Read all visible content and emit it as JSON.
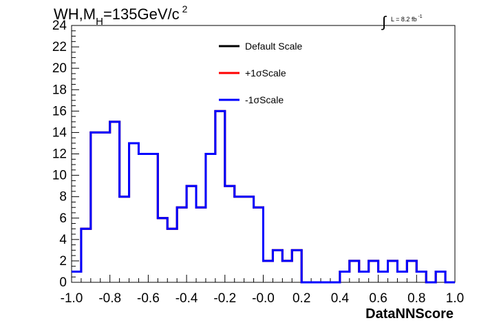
{
  "chart_data": {
    "type": "line",
    "title": "WH,M",
    "title_sub": "H",
    "title_rest": "=135GeV/c",
    "title_sup": "2",
    "lumi_text": "L = 8.2 fb",
    "lumi_sup": "-1",
    "xlabel": "DataNNScore",
    "ylabel": "",
    "xlim": [
      -1.0,
      1.0
    ],
    "ylim": [
      0,
      24
    ],
    "x_ticks": [
      "-1.0",
      "-0.8",
      "-0.6",
      "-0.4",
      "-0.2",
      "-0.0",
      "0.2",
      "0.4",
      "0.6",
      "0.8",
      "1.0"
    ],
    "y_ticks": [
      "0",
      "2",
      "4",
      "6",
      "8",
      "10",
      "12",
      "14",
      "16",
      "18",
      "20",
      "22",
      "24"
    ],
    "grid": false,
    "legend_position": "top-center",
    "bin_edges": [
      -1.0,
      -0.95,
      -0.9,
      -0.85,
      -0.8,
      -0.75,
      -0.7,
      -0.65,
      -0.6,
      -0.55,
      -0.5,
      -0.45,
      -0.4,
      -0.35,
      -0.3,
      -0.25,
      -0.2,
      -0.15,
      -0.1,
      -0.05,
      0.0,
      0.05,
      0.1,
      0.15,
      0.2,
      0.25,
      0.3,
      0.35,
      0.4,
      0.45,
      0.5,
      0.55,
      0.6,
      0.65,
      0.7,
      0.75,
      0.8,
      0.85,
      0.9,
      0.95,
      1.0
    ],
    "series": [
      {
        "name": "Default Scale",
        "color": "#000000",
        "values": [
          1,
          5,
          14,
          14,
          15,
          8,
          13,
          12,
          12,
          6,
          5,
          7,
          9,
          7,
          12,
          16,
          9,
          8,
          8,
          7,
          2,
          3,
          2,
          3,
          0,
          0,
          0,
          0,
          1,
          2,
          1,
          2,
          1,
          2,
          1,
          2,
          1,
          0,
          1,
          0
        ]
      },
      {
        "name": "+1σScale",
        "color": "#ff0000",
        "values": [
          1,
          5,
          14,
          14,
          15,
          8,
          13,
          12,
          12,
          6,
          5,
          7,
          9,
          7,
          12,
          16,
          9,
          8,
          8,
          7,
          2,
          3,
          2,
          3,
          0,
          0,
          0,
          0,
          1,
          2,
          1,
          2,
          1,
          2,
          1,
          2,
          1,
          0,
          1,
          0
        ]
      },
      {
        "name": "-1σScale",
        "color": "#0000ff",
        "values": [
          1,
          5,
          14,
          14,
          15,
          8,
          13,
          12,
          12,
          6,
          5,
          7,
          9,
          7,
          12,
          16,
          9,
          8,
          8,
          7,
          2,
          3,
          2,
          3,
          0,
          0,
          0,
          0,
          1,
          2,
          1,
          2,
          1,
          2,
          1,
          2,
          1,
          0,
          1,
          0
        ]
      }
    ]
  }
}
